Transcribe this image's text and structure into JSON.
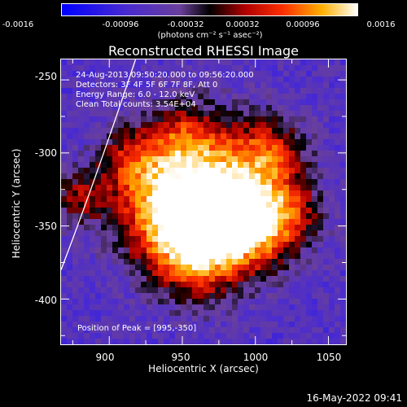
{
  "colorbar": {
    "ticks": [
      "-0.0016",
      "-0.00096",
      "-0.00032",
      "0.00032",
      "0.00096",
      "0.0016"
    ],
    "units": "(photons cm⁻² s⁻¹ asec⁻²)"
  },
  "plot": {
    "title": "Reconstructed RHESSI Image",
    "info": [
      "24-Aug-2013 09:50:20.000 to 09:56:20.000",
      "Detectors: 3F 4F 5F 6F 7F 8F, Att 0",
      "Energy Range: 6.0 - 12.0 keV",
      "Clean     Total counts: 3.54E+04"
    ],
    "peak": "Position of Peak = [995,-350]",
    "timestamp": "16-May-2022 09:41"
  },
  "chart_data": {
    "type": "heatmap",
    "title": "Reconstructed RHESSI Image",
    "xlabel": "Heliocentric X (arcsec)",
    "ylabel": "Heliocentric Y (arcsec)",
    "xlim": [
      867,
      1062
    ],
    "ylim": [
      -431,
      -236
    ],
    "xticks": [
      "900",
      "950",
      "1000",
      "1050"
    ],
    "yticks": [
      "-250",
      "-300",
      "-350",
      "-400"
    ],
    "colorbar_range": [
      -0.0016,
      0.0016
    ],
    "colormap": "blue-purple-black-red-yellow-white",
    "peak": [
      995,
      -350
    ]
  }
}
